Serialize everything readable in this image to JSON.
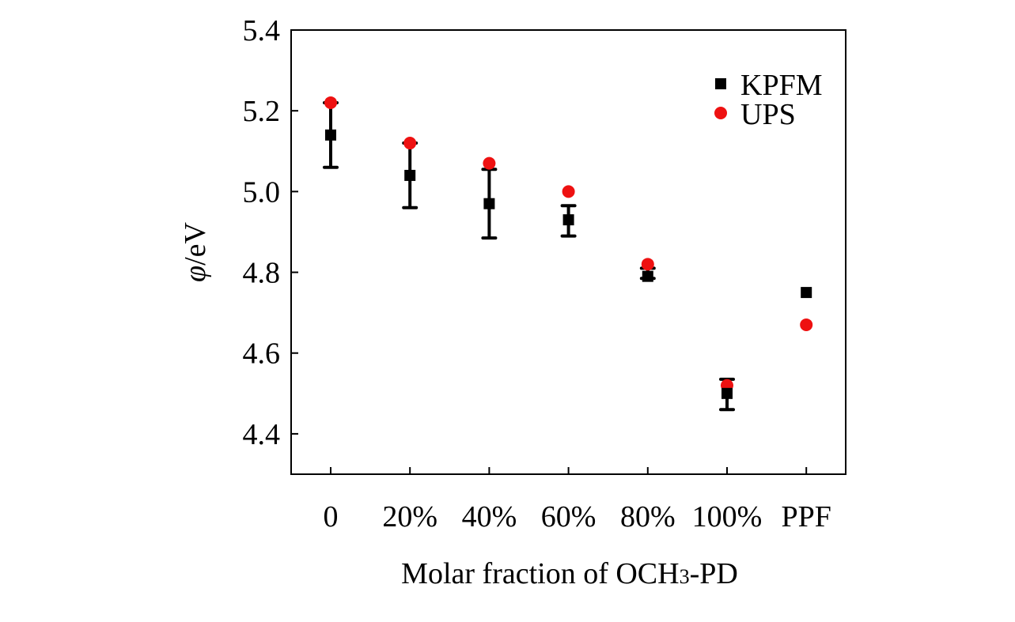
{
  "chart_data": {
    "type": "scatter",
    "title": "",
    "xlabel": "Molar fraction of OCH3-PD",
    "xlabel_parts": {
      "prefix": "Molar fraction of OCH",
      "subscript": "3",
      "suffix": "-PD"
    },
    "ylabel": "φ/eV",
    "ylabel_parts": {
      "symbol": "φ",
      "unit": "/eV"
    },
    "categories": [
      "0",
      "20%",
      "40%",
      "60%",
      "80%",
      "100%",
      "PPF"
    ],
    "ylim": [
      4.3,
      5.4
    ],
    "yticks": [
      4.4,
      4.6,
      4.8,
      5.0,
      5.2,
      5.4
    ],
    "ytick_labels": [
      "4.4",
      "4.6",
      "4.8",
      "5.0",
      "5.2",
      "5.4"
    ],
    "legend_position": "top-right",
    "series": [
      {
        "name": "KPFM",
        "marker": "square",
        "color": "#000000",
        "values": [
          5.14,
          5.04,
          4.97,
          4.93,
          4.79,
          4.5,
          4.75
        ],
        "error_low": [
          5.06,
          4.96,
          4.885,
          4.89,
          4.785,
          4.46,
          null
        ],
        "error_high": [
          5.22,
          5.12,
          5.055,
          4.965,
          4.81,
          4.535,
          null
        ]
      },
      {
        "name": "UPS",
        "marker": "circle",
        "color": "#ee1111",
        "values": [
          5.22,
          5.12,
          5.07,
          5.0,
          4.82,
          4.52,
          4.67
        ]
      }
    ]
  }
}
